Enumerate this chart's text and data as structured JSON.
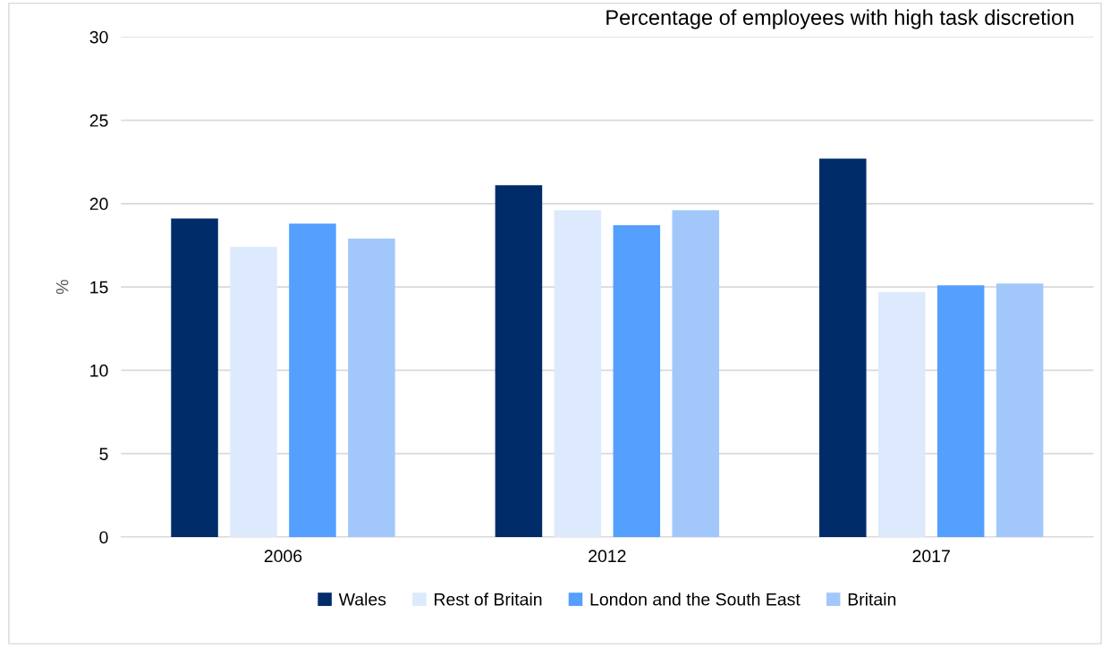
{
  "chart_data": {
    "type": "bar",
    "title": "Percentage of employees with high task discretion",
    "ylabel": "%",
    "categories": [
      "2006",
      "2012",
      "2017"
    ],
    "series": [
      {
        "name": "Wales",
        "color": "#002d6a",
        "values": [
          19.1,
          21.1,
          22.7
        ]
      },
      {
        "name": "Rest of Britain",
        "color": "#ddeafd",
        "values": [
          17.4,
          19.6,
          14.7
        ]
      },
      {
        "name": "London and the South East",
        "color": "#559fff",
        "values": [
          18.8,
          18.7,
          15.1
        ]
      },
      {
        "name": "Britain",
        "color": "#a2c8fb",
        "values": [
          17.9,
          19.6,
          15.2
        ]
      }
    ],
    "ylim": [
      0,
      30
    ],
    "yticks": [
      0,
      5,
      10,
      15,
      20,
      25,
      30
    ],
    "grid": "y",
    "legend": "bottom"
  }
}
